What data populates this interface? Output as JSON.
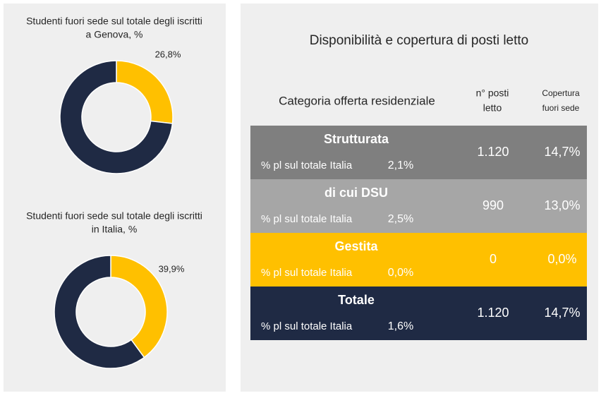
{
  "chart_data": [
    {
      "type": "donut",
      "title": [
        "Studenti fuori sede sul totale degli iscritti",
        "a Genova, %"
      ],
      "values": [
        26.8,
        73.2
      ],
      "value_labels": [
        "26,8%",
        null
      ],
      "colors": [
        "#ffc000",
        "#1f2a44"
      ]
    },
    {
      "type": "donut",
      "title": [
        "Studenti fuori sede sul totale degli iscritti",
        "in Italia, %"
      ],
      "values": [
        39.9,
        60.1
      ],
      "value_labels": [
        "39,9%",
        null
      ],
      "colors": [
        "#ffc000",
        "#1f2a44"
      ]
    }
  ],
  "table": {
    "title": "Disponibilità e copertura di posti letto",
    "headers": [
      [
        "Categoria offerta residenziale"
      ],
      [
        "n° posti",
        "letto"
      ],
      [
        "Copertura",
        "fuori sede"
      ]
    ],
    "rows": [
      {
        "name": "Strutturata",
        "sub": "% pl sul totale Italia",
        "pct": "2,1%",
        "beds": "1.120",
        "coverage": "14,7%",
        "color": "#7f7f7f"
      },
      {
        "name": "di cui DSU",
        "sub": "% pl sul totale Italia",
        "pct": "2,5%",
        "beds": "990",
        "coverage": "13,0%",
        "color": "#a6a6a6"
      },
      {
        "name": "Gestita",
        "sub": "% pl sul totale Italia",
        "pct": "0,0%",
        "beds": "0",
        "coverage": "0,0%",
        "color": "#ffc000"
      },
      {
        "name": "Totale",
        "sub": "% pl sul totale Italia",
        "pct": "1,6%",
        "beds": "1.120",
        "coverage": "14,7%",
        "color": "#1f2a44"
      }
    ]
  }
}
